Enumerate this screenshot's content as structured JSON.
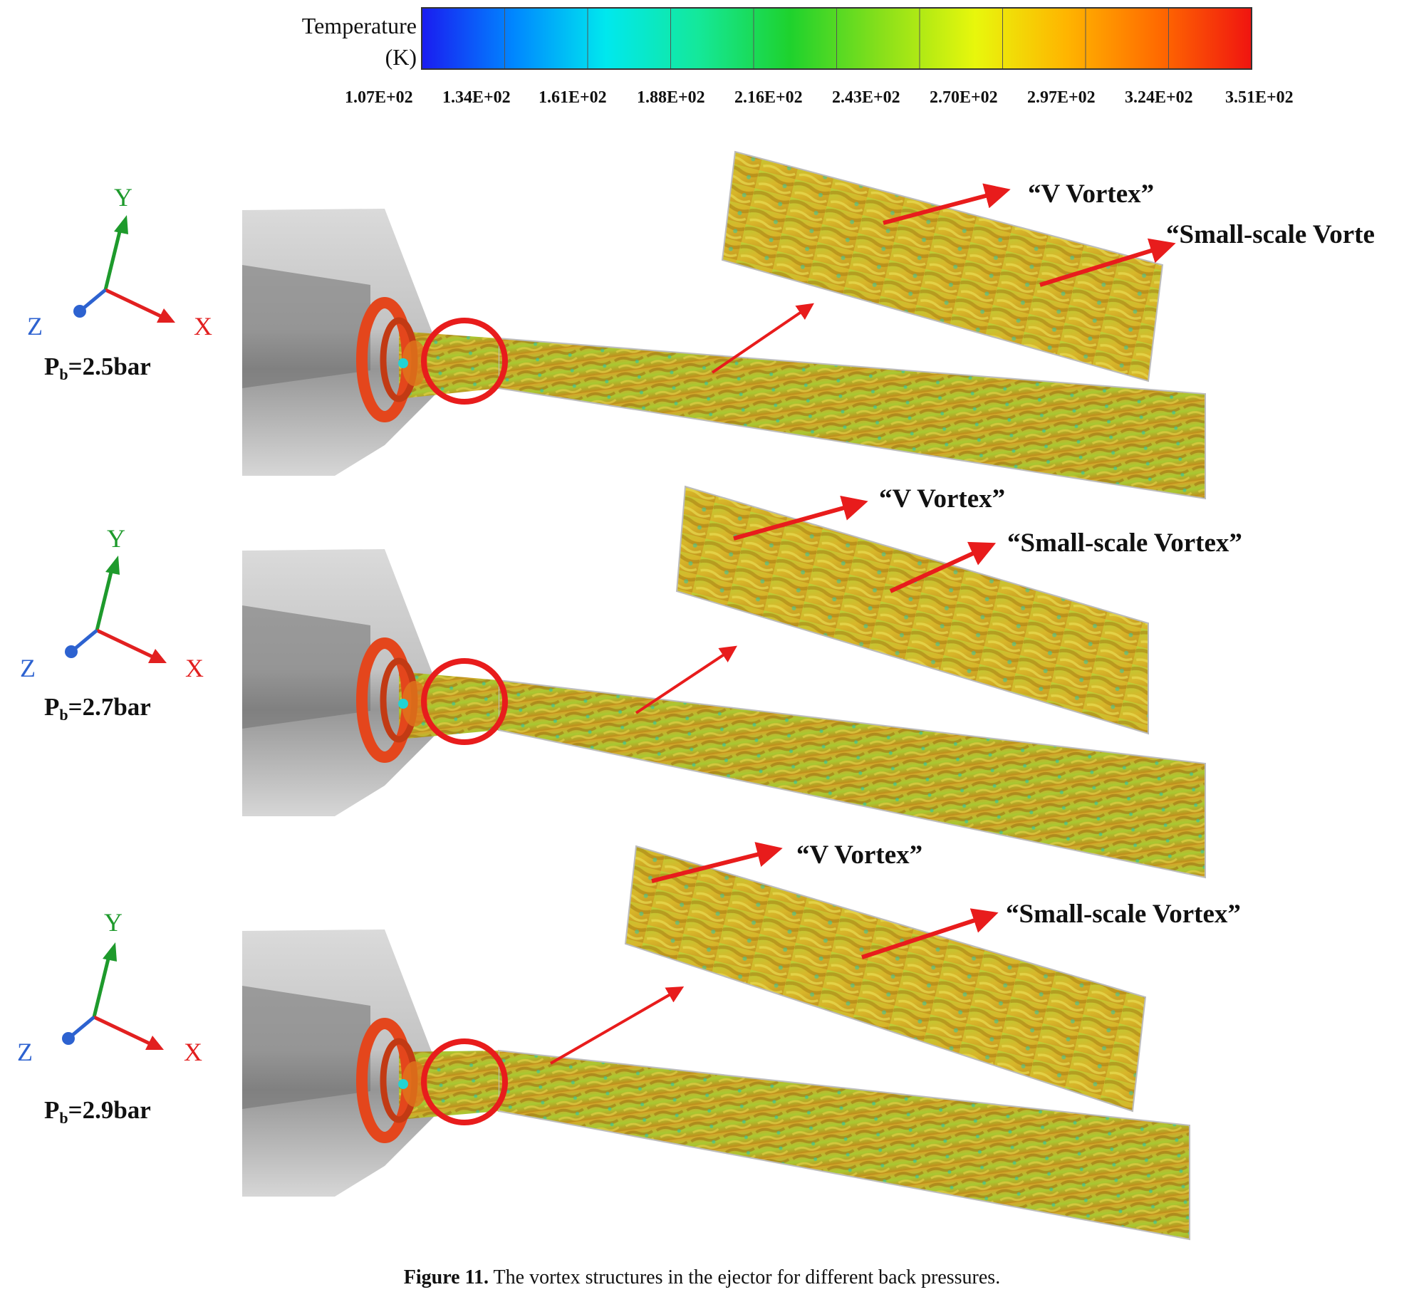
{
  "colorbar": {
    "title_line1": "Temperature",
    "title_line2": "(K)",
    "ticks": [
      "1.07E+02",
      "1.34E+02",
      "1.61E+02",
      "1.88E+02",
      "2.16E+02",
      "2.43E+02",
      "2.70E+02",
      "2.97E+02",
      "3.24E+02",
      "3.51E+02"
    ],
    "colors": [
      "#1a1cf0",
      "#0087ff",
      "#00e8ee",
      "#14e89a",
      "#1ed22d",
      "#8ae01a",
      "#e8f70c",
      "#ffb400",
      "#ff6a00",
      "#f01410"
    ]
  },
  "panels": [
    {
      "axes": {
        "y": "Y",
        "x": "X",
        "z": "Z"
      },
      "pb_prefix": "P",
      "pb_sub": "b",
      "pb_value": "=2.5bar",
      "v_vortex": "“V Vortex”",
      "small_vortex": "“Small-scale Vorte"
    },
    {
      "axes": {
        "y": "Y",
        "x": "X",
        "z": "Z"
      },
      "pb_prefix": "P",
      "pb_sub": "b",
      "pb_value": "=2.7bar",
      "v_vortex": "“V Vortex”",
      "small_vortex": "“Small-scale Vortex”"
    },
    {
      "axes": {
        "y": "Y",
        "x": "X",
        "z": "Z"
      },
      "pb_prefix": "P",
      "pb_sub": "b",
      "pb_value": "=2.9bar",
      "v_vortex": "“V Vortex”",
      "small_vortex": "“Small-scale Vortex”"
    }
  ],
  "caption": {
    "label": "Figure 11.",
    "text": "The vortex structures in the ejector for different back pressures."
  },
  "colors": {
    "annotation_red": "#e81c1c",
    "nozzle_orange": "#e4461c",
    "vortex_gold": "#c9a520",
    "vortex_green": "#9cc830",
    "body_gray": "#c8c8c8"
  }
}
